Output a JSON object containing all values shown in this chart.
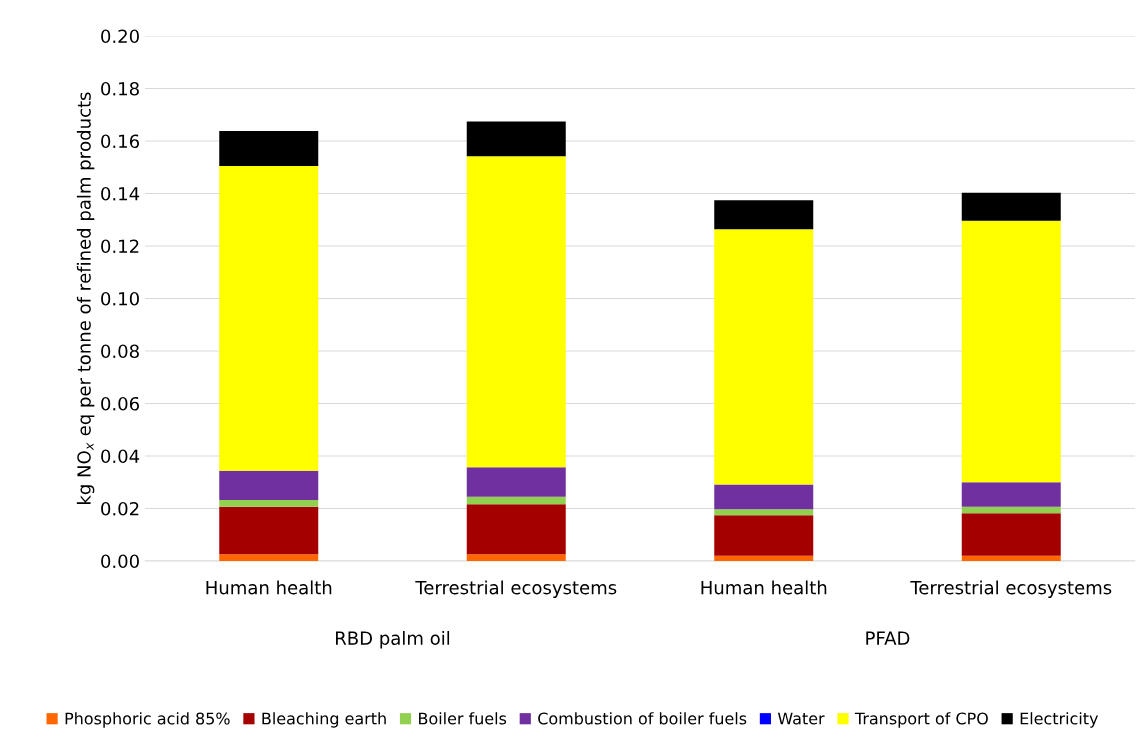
{
  "chart_data": {
    "type": "bar",
    "stacked": true,
    "categories": [
      "Human health",
      "Terrestrial ecosystems",
      "Human health",
      "Terrestrial ecosystems"
    ],
    "ylabel": "kg NO$_{x}$ eq per tonne of refined palm products",
    "annotations": [
      "RBD palm oil",
      "PFAD"
    ],
    "series": [
      {
        "name": "Phosphoric acid 85%",
        "color": "#ff6600",
        "values": [
          0.0026,
          0.0026,
          0.002,
          0.002
        ]
      },
      {
        "name": "Bleaching earth",
        "color": "#a50000",
        "values": [
          0.0181,
          0.019,
          0.0154,
          0.0162
        ]
      },
      {
        "name": "Boiler fuels",
        "color": "#92d050",
        "values": [
          0.0025,
          0.0029,
          0.0023,
          0.0025
        ]
      },
      {
        "name": "Combustion of boiler fuels",
        "color": "#7030a0",
        "values": [
          0.0112,
          0.0112,
          0.0094,
          0.0093
        ]
      },
      {
        "name": "Water",
        "color": "#0000ff",
        "values": [
          0,
          0,
          0,
          0
        ]
      },
      {
        "name": "Transport of CPO",
        "color": "#ffff00",
        "values": [
          0.1161,
          0.1185,
          0.0973,
          0.0996
        ]
      },
      {
        "name": "Electricity",
        "color": "#000000",
        "values": [
          0.0133,
          0.0132,
          0.011,
          0.0107
        ]
      }
    ],
    "ylim": [
      0,
      0.2
    ],
    "yticks": [
      {
        "value": 0,
        "label": "0.00"
      },
      {
        "value": 0.02,
        "label": "0.02"
      },
      {
        "value": 0.04,
        "label": "0.04"
      },
      {
        "value": 0.06,
        "label": "0.06"
      },
      {
        "value": 0.08,
        "label": "0.08"
      },
      {
        "value": 0.1,
        "label": "0.10"
      },
      {
        "value": 0.12,
        "label": "0.12"
      },
      {
        "value": 0.14,
        "label": "0.14"
      },
      {
        "value": 0.16,
        "label": "0.16"
      },
      {
        "value": 0.18,
        "label": "0.18"
      },
      {
        "value": 0.2,
        "label": "0.20"
      }
    ],
    "grid": "y",
    "legend": "bottom"
  }
}
